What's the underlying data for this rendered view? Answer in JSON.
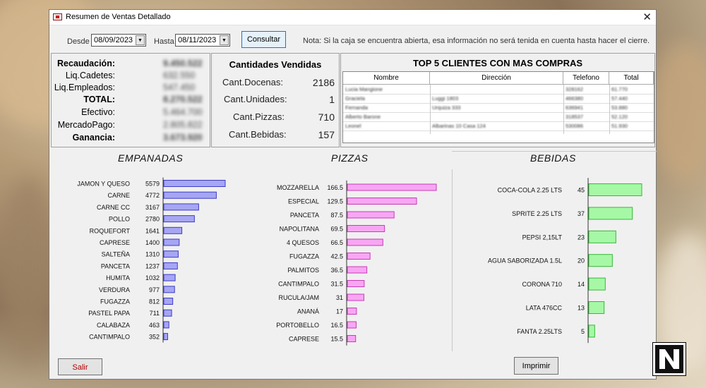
{
  "window": {
    "title": "Resumen de Ventas Detallado",
    "close_glyph": "✕"
  },
  "filters": {
    "desde_label": "Desde",
    "desde_value": "08/09/2023",
    "hasta_label": "Hasta",
    "hasta_value": "08/11/2023",
    "consultar_label": "Consultar",
    "note": "Nota: Si la caja se encuentra abierta, esa información no será tenida en cuenta hasta hacer el cierre."
  },
  "summary": {
    "rows": [
      {
        "label": "Recaudación:",
        "value": "9.450.522",
        "bold": true
      },
      {
        "label": "Liq.Cadetes:",
        "value": "632.550",
        "bold": false
      },
      {
        "label": "Liq.Empleados:",
        "value": "547.450",
        "bold": false
      },
      {
        "label": "TOTAL:",
        "value": "8.270.522",
        "bold": true
      },
      {
        "label": "Efectivo:",
        "value": "5.464.700",
        "bold": false
      },
      {
        "label": "MercadoPago:",
        "value": "2.805.822",
        "bold": false
      },
      {
        "label": "Ganancia:",
        "value": "3.673.920",
        "bold": true
      }
    ]
  },
  "quantities": {
    "title": "Cantidades Vendidas",
    "rows": [
      {
        "label": "Cant.Docenas:",
        "value": "2186"
      },
      {
        "label": "Cant.Unidades:",
        "value": "1"
      },
      {
        "label": "Cant.Pizzas:",
        "value": "710"
      },
      {
        "label": "Cant.Bebidas:",
        "value": "157"
      }
    ]
  },
  "top_clients": {
    "title": "TOP 5 CLIENTES CON MAS COMPRAS",
    "columns": [
      "Nombre",
      "Dirección",
      "Telefono",
      "Total"
    ],
    "rows": [
      [
        "Lucia Mangione",
        "",
        "328162",
        "61.770"
      ],
      [
        "Graciela",
        "Luggi 1803",
        "466380",
        "57.440"
      ],
      [
        "Fernanda",
        "Urquiza 333",
        "636941",
        "53.880"
      ],
      [
        "Alberto Barone",
        "",
        "318537",
        "52.120"
      ],
      [
        "Leonel",
        "Albarinas 10 Casa 124",
        "530086",
        "51.930"
      ]
    ]
  },
  "buttons": {
    "salir_label": "Salir",
    "imprimir_label": "Imprimir"
  },
  "colors": {
    "empanadas": "#a6a6f3",
    "empanadas_stroke": "#3c3cc8",
    "pizzas": "#f8a6f4",
    "pizzas_stroke": "#c83cb4",
    "bebidas": "#a6f8a6",
    "bebidas_stroke": "#38b838"
  },
  "chart_data": [
    {
      "type": "bar",
      "title": "EMPANADAS",
      "categories": [
        "JAMON Y QUESO",
        "CARNE",
        "CARNE CC",
        "POLLO",
        "ROQUEFORT",
        "CAPRESE",
        "SALTEÑA",
        "PANCETA",
        "HUMITA",
        "VERDURA",
        "FUGAZZA",
        "PASTEL PAPA",
        "CALABAZA",
        "CANTIMPALO"
      ],
      "values": [
        5579,
        4772,
        3167,
        2780,
        1641,
        1400,
        1310,
        1237,
        1032,
        977,
        812,
        711,
        463,
        352
      ],
      "labels": [
        "5579",
        "4772",
        "3167",
        "2780",
        "1641",
        "1400",
        "1310",
        "1237",
        "1032",
        "977",
        "812",
        "711",
        "463",
        "352"
      ]
    },
    {
      "type": "bar",
      "title": "PIZZAS",
      "categories": [
        "MOZZARELLA",
        "ESPECIAL",
        "PANCETA",
        "NAPOLITANA",
        "4 QUESOS",
        "FUGAZZA",
        "PALMITOS",
        "CANTIMPALO",
        "RUCULA/JAM",
        "ANANÁ",
        "PORTOBELLO",
        "CAPRESE"
      ],
      "values": [
        166.5,
        129.5,
        87.5,
        69.5,
        66.5,
        42.5,
        36.5,
        31.5,
        31,
        17,
        16.5,
        15.5
      ],
      "labels": [
        "166.5",
        "129.5",
        "87.5",
        "69.5",
        "66.5",
        "42.5",
        "36.5",
        "31.5",
        "31",
        "17",
        "16.5",
        "15.5"
      ]
    },
    {
      "type": "bar",
      "title": "BEBIDAS",
      "categories": [
        "COCA-COLA 2.25 LTS",
        "SPRITE 2.25 LTS",
        "PEPSI 2,15LT",
        "AGUA SABORIZADA 1.5L",
        "CORONA 710",
        "LATA 476CC",
        "FANTA 2.25LTS"
      ],
      "values": [
        45,
        37,
        23,
        20,
        14,
        13,
        5
      ],
      "labels": [
        "45",
        "37",
        "23",
        "20",
        "14",
        "13",
        "5"
      ]
    }
  ]
}
